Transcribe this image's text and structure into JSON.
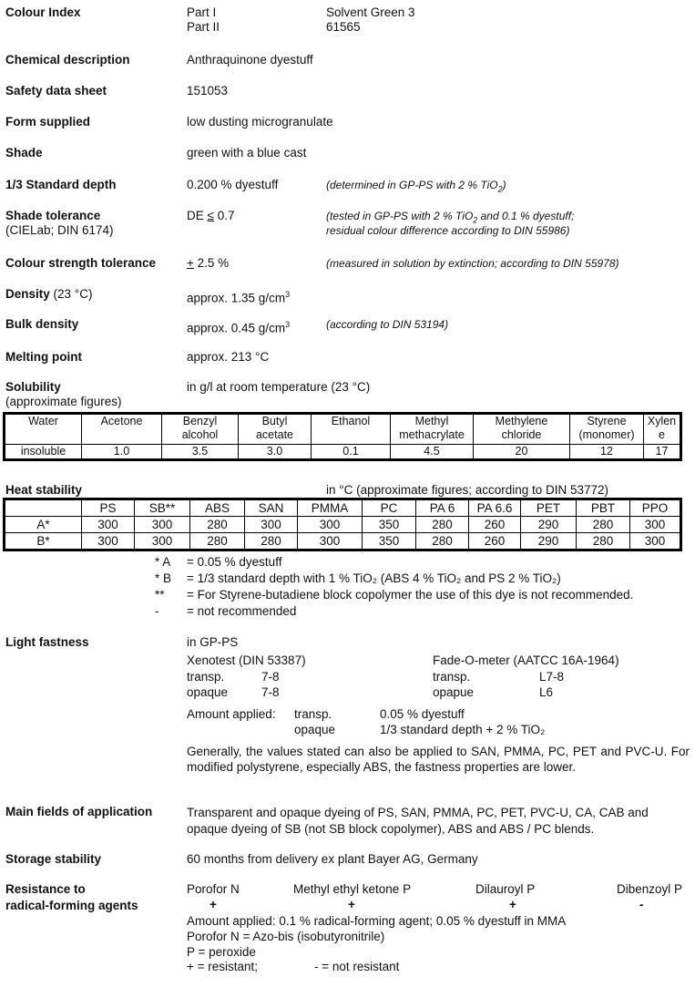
{
  "colour_index": {
    "label": "Colour Index",
    "part1_label": "Part I",
    "part1_value": "Solvent Green 3",
    "part2_label": "Part II",
    "part2_value": "61565"
  },
  "chemical": {
    "label": "Chemical description",
    "value": "Anthraquinone dyestuff"
  },
  "safety": {
    "label": "Safety data sheet",
    "value": "151053"
  },
  "form": {
    "label": "Form supplied",
    "value": "low dusting microgranulate"
  },
  "shade": {
    "label": "Shade",
    "value": "green with a blue cast"
  },
  "std_depth": {
    "label": "1/3 Standard depth",
    "value": "0.200 % dyestuff",
    "note_a": "(determined in GP-PS with 2 % TiO",
    "note_sub": "2",
    "note_b": ")"
  },
  "shade_tol": {
    "label": "Shade tolerance",
    "sublabel": "(CIELab; DIN 6174)",
    "value_prefix": "DE ",
    "value_sym": "≤",
    "value": " 0.7",
    "note1_a": "(tested in GP-PS with 2 % TiO",
    "note1_sub": "2",
    "note1_b": " and 0.1 % dyestuff;",
    "note2": "residual colour difference according to DIN 55986)"
  },
  "strength_tol": {
    "label": "Colour strength tolerance",
    "value_sym": "+",
    "value": " 2.5 %",
    "note": "(measured in solution by extinction; according to DIN 55978)"
  },
  "density": {
    "label": "Density",
    "label_suffix": " (23 °C)",
    "value": "approx. 1.35 g/cm",
    "sup": "3"
  },
  "bulk": {
    "label": "Bulk density",
    "value": "approx. 0.45 g/cm",
    "sup": "3",
    "note": "(according to DIN 53194)"
  },
  "melting": {
    "label": "Melting point",
    "value": "approx. 213 °C"
  },
  "solubility": {
    "label": "Solubility",
    "sublabel": "(approximate figures)",
    "value": "in g/l at room temperature (23 °C)",
    "headers": [
      [
        "Water",
        ""
      ],
      [
        "Acetone",
        ""
      ],
      [
        "Benzyl",
        "alcohol"
      ],
      [
        "Butyl",
        "acetate"
      ],
      [
        "Ethanol",
        ""
      ],
      [
        "Methyl",
        "methacrylate"
      ],
      [
        "Methylene",
        "chloride"
      ],
      [
        "Styrene",
        "(monomer)"
      ],
      [
        "Xylen",
        "e"
      ]
    ],
    "values": [
      "insoluble",
      "1.0",
      "3.5",
      "3.0",
      "0.1",
      "4.5",
      "20",
      "12",
      "17"
    ]
  },
  "heat": {
    "label": "Heat stability",
    "value": "in °C (approximate figures; according to DIN 53772)",
    "headers": [
      "",
      "PS",
      "SB**",
      "ABS",
      "SAN",
      "PMMA",
      "PC",
      "PA 6",
      "PA 6.6",
      "PET",
      "PBT",
      "PPO"
    ],
    "rows": [
      [
        "A*",
        "300",
        "300",
        "280",
        "300",
        "300",
        "350",
        "280",
        "260",
        "290",
        "280",
        "300"
      ],
      [
        "B*",
        "300",
        "300",
        "280",
        "280",
        "300",
        "350",
        "280",
        "260",
        "290",
        "280",
        "300"
      ]
    ],
    "footnotes": [
      {
        "key": "* A",
        "text": "= 0.05 % dyestuff"
      },
      {
        "key": "* B",
        "text": "= 1/3 standard depth with 1 % TiO₂ (ABS 4 % TiO₂ and PS 2 % TiO₂)"
      },
      {
        "key": "**",
        "text": "= For Styrene-butadiene block copolymer the use of this dye is not recommended."
      },
      {
        "key": "-",
        "text": "= not recommended"
      }
    ]
  },
  "light": {
    "label": "Light fastness",
    "value": "in GP-PS",
    "xeno_title": "Xenotest (DIN 53387)",
    "xeno_rows": [
      [
        "transp.",
        "7-8"
      ],
      [
        "opaque",
        "7-8"
      ]
    ],
    "fade_title": "Fade-O-meter (AATCC 16A-1964)",
    "fade_rows": [
      [
        "transp.",
        "L7-8"
      ],
      [
        "opapue",
        "L6"
      ]
    ],
    "amount_label": "Amount applied:",
    "amount_rows": [
      [
        "transp.",
        "0.05 % dyestuff"
      ],
      [
        "opaque",
        "1/3 standard depth + 2 % TiO₂"
      ]
    ],
    "note": "Generally, the values stated can also be applied to SAN, PMMA, PC, PET and PVC-U. For modified polystyrene, especially ABS, the fastness properties are lower."
  },
  "fields": {
    "label": "Main fields of application",
    "value": "Transparent and opaque dyeing of PS, SAN, PMMA, PC, PET, PVC-U, CA, CAB and opaque dyeing of SB (not SB block copolymer), ABS and ABS / PC blends."
  },
  "storage": {
    "label": "Storage stability",
    "value": "60 months from delivery ex plant Bayer AG, Germany"
  },
  "radical": {
    "label1": "Resistance to",
    "label2": "radical-forming agents",
    "agents": [
      {
        "name": "Porofor N",
        "result": "+"
      },
      {
        "name": "Methyl ethyl ketone P",
        "result": "+"
      },
      {
        "name": "Dilauroyl P",
        "result": "+"
      },
      {
        "name": "Dibenzoyl P",
        "result": "-"
      }
    ],
    "notes": [
      "Amount applied: 0.1 % radical-forming agent; 0.05 % dyestuff in MMA",
      "Porofor N = Azo-bis (isobutyronitrile)",
      "P = peroxide"
    ],
    "legend_plus": "+ = resistant;",
    "legend_minus": "- = not resistant"
  }
}
